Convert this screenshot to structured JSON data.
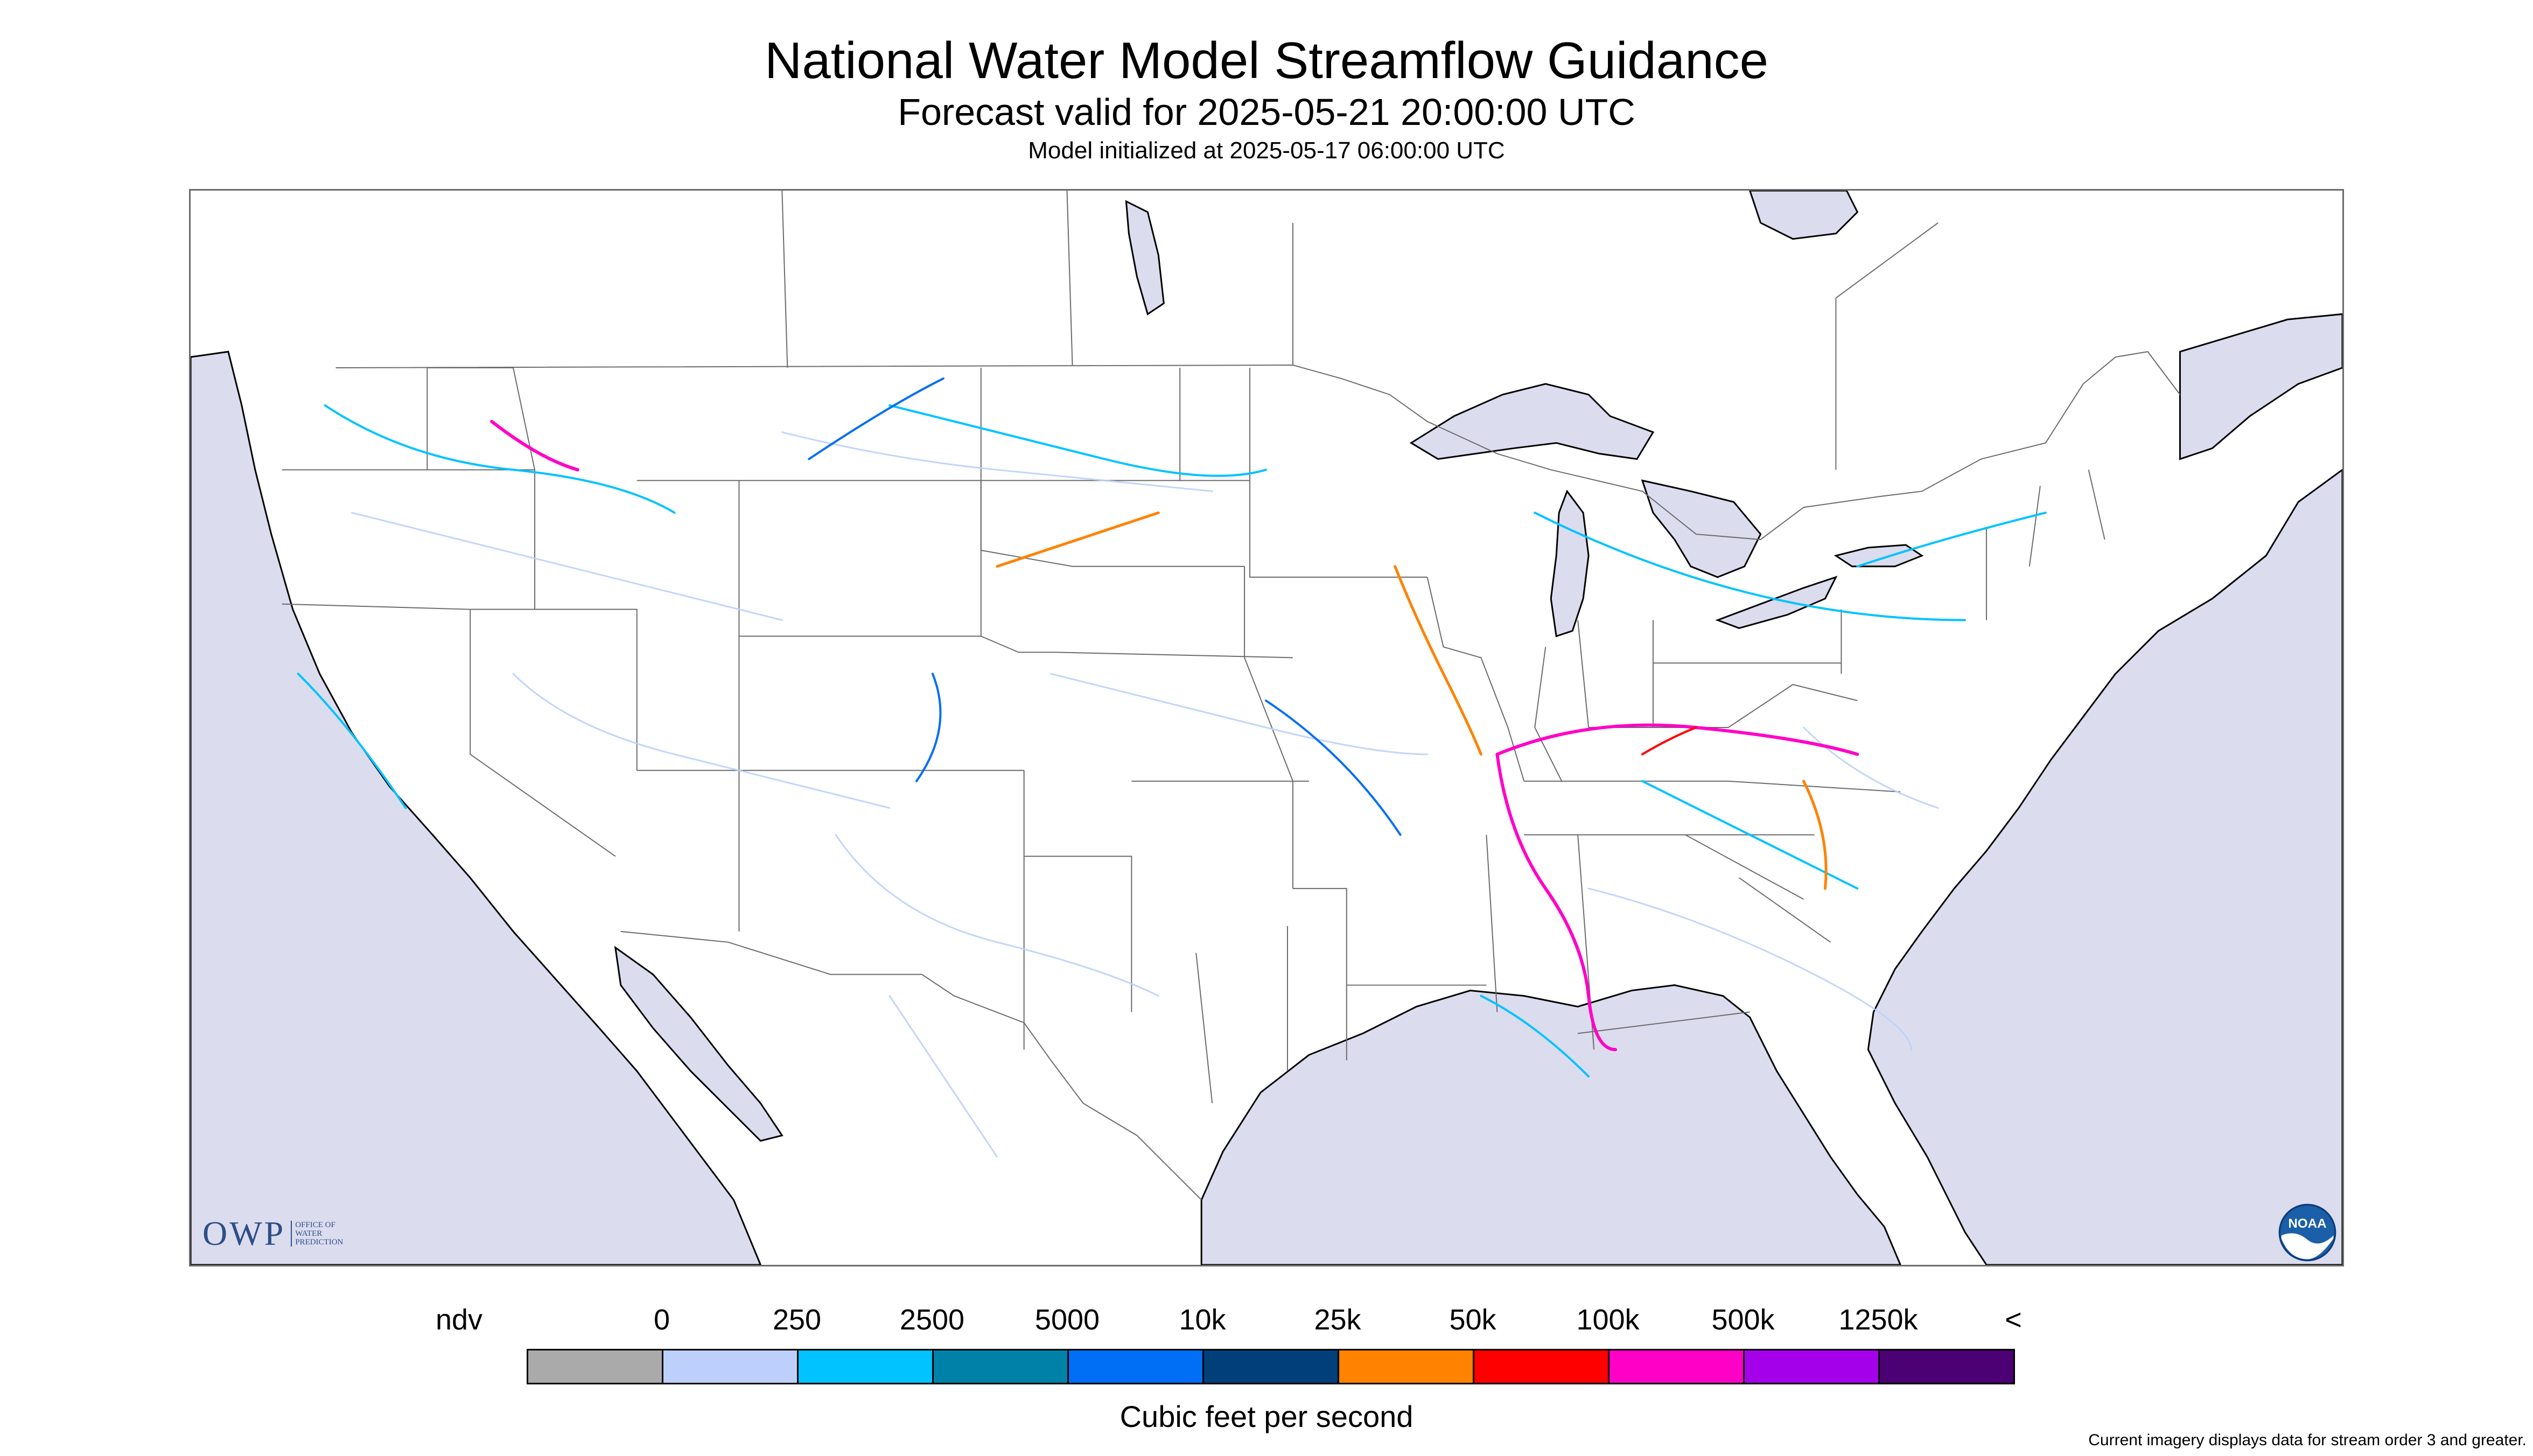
{
  "header": {
    "title": "National Water Model Streamflow Guidance",
    "forecast_valid": "Forecast valid for 2025-05-21 20:00:00 UTC",
    "model_init": "Model initialized at 2025-05-17 06:00:00 UTC"
  },
  "map": {
    "region": "Contiguous United States",
    "layers": [
      "land",
      "water bodies",
      "state boundaries",
      "country boundaries",
      "streamflow rivers"
    ],
    "colors": {
      "land": "#ffffff",
      "water": "#dcdcef",
      "boundaries": "#6b6b6b",
      "coast": "#000000"
    }
  },
  "logos": {
    "owp_text": "OWP",
    "owp_subtext": [
      "Office of",
      "Water",
      "Prediction"
    ],
    "noaa_text": "NOAA"
  },
  "legend": {
    "labels": [
      "ndv",
      "0",
      "250",
      "2500",
      "5000",
      "10k",
      "25k",
      "50k",
      "100k",
      "500k",
      "1250k",
      "<"
    ],
    "swatches": [
      {
        "range": "ndv",
        "color": "#aaaaaa"
      },
      {
        "range": "0-250",
        "color": "#bdd0fb"
      },
      {
        "range": "250-2500",
        "color": "#00c3ff"
      },
      {
        "range": "2500-5000",
        "color": "#0082a8"
      },
      {
        "range": "5000-10k",
        "color": "#006ef5"
      },
      {
        "range": "10k-25k",
        "color": "#003f7a"
      },
      {
        "range": "25k-50k",
        "color": "#ff8200"
      },
      {
        "range": "50k-100k",
        "color": "#ff0000"
      },
      {
        "range": "100k-500k",
        "color": "#ff00c6"
      },
      {
        "range": "500k-1250k",
        "color": "#a500ea"
      },
      {
        "range": "1250k+",
        "color": "#4b0073"
      }
    ],
    "title": "Cubic feet per second"
  },
  "footnote": "Current imagery displays data for stream order 3 and greater."
}
